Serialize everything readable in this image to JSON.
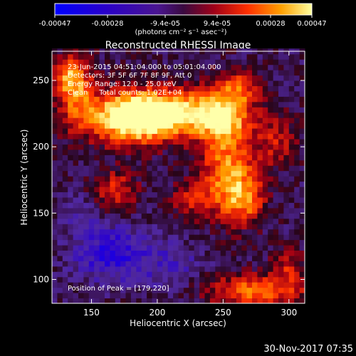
{
  "chart_data": {
    "type": "heatmap",
    "title": "Reconstructed RHESSI Image",
    "xlabel": "Heliocentric X (arcsec)",
    "ylabel": "Heliocentric Y (arcsec)",
    "xlim": [
      120,
      312
    ],
    "ylim": [
      82,
      272
    ],
    "x_ticks": [
      150,
      200,
      250,
      300
    ],
    "y_ticks": [
      100,
      150,
      200,
      250
    ],
    "colorbar": {
      "min": -0.00047,
      "max": 0.00047,
      "tick_labels": [
        "-0.00047",
        "-0.00028",
        "-9.4e-05",
        "9.4e-05",
        "0.00028",
        "0.00047"
      ],
      "unit_label": "(photons cm⁻² s⁻¹ asec⁻²)"
    },
    "annotations": [
      "23-Jun-2015 04:51:04.000 to 05:01:04.000",
      "Detectors: 3F 5F 6F 7F 8F 9F, Att 0",
      "Energy Range: 12.0 - 25.0 keV",
      "Clean     Total counts: 1.02E+04"
    ],
    "peak_label": "Position of Peak = [179,220]",
    "peak": [
      179,
      220
    ],
    "emission_sources": [
      {
        "x": 180,
        "y": 222,
        "sx": 22,
        "sy": 13,
        "amp": 1.05
      },
      {
        "x": 212,
        "y": 226,
        "sx": 28,
        "sy": 12,
        "amp": 0.85
      },
      {
        "x": 250,
        "y": 222,
        "sx": 14,
        "sy": 14,
        "amp": 0.7
      },
      {
        "x": 262,
        "y": 245,
        "sx": 10,
        "sy": 9,
        "amp": 0.5
      },
      {
        "x": 138,
        "y": 240,
        "sx": 10,
        "sy": 18,
        "amp": 0.55
      },
      {
        "x": 132,
        "y": 255,
        "sx": 9,
        "sy": 10,
        "amp": 0.45
      },
      {
        "x": 254,
        "y": 178,
        "sx": 14,
        "sy": 22,
        "amp": 0.75
      },
      {
        "x": 268,
        "y": 160,
        "sx": 10,
        "sy": 12,
        "amp": 0.45
      },
      {
        "x": 168,
        "y": 168,
        "sx": 12,
        "sy": 10,
        "amp": 0.45
      },
      {
        "x": 225,
        "y": 160,
        "sx": 10,
        "sy": 10,
        "amp": 0.35
      },
      {
        "x": 290,
        "y": 205,
        "sx": 12,
        "sy": 14,
        "amp": 0.35
      },
      {
        "x": 275,
        "y": 92,
        "sx": 26,
        "sy": 8,
        "amp": 0.65
      },
      {
        "x": 300,
        "y": 110,
        "sx": 9,
        "sy": 9,
        "amp": 0.35
      }
    ],
    "negative_sources": [
      {
        "x": 165,
        "y": 120,
        "sx": 20,
        "sy": 14,
        "amp": 0.5
      },
      {
        "x": 210,
        "y": 110,
        "sx": 18,
        "sy": 12,
        "amp": 0.25
      },
      {
        "x": 140,
        "y": 150,
        "sx": 10,
        "sy": 10,
        "amp": 0.2
      }
    ]
  },
  "footer": {
    "date": "30-Nov-2017 07:35"
  }
}
